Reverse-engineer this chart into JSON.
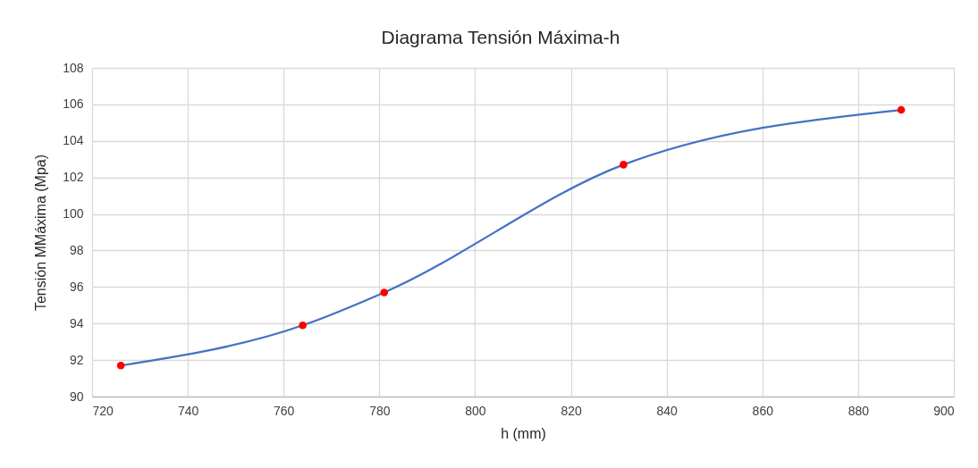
{
  "chart_data": {
    "type": "line",
    "title": "Diagrama Tensión Máxima-h",
    "xlabel": "h (mm)",
    "ylabel": "Tensión MMáxima (Mpa)",
    "x": [
      726,
      764,
      781,
      831,
      889
    ],
    "series": [
      {
        "color": "#4472c4",
        "values": [
          91.7,
          93.9,
          95.7,
          102.7,
          105.7
        ]
      },
      {
        "type": "scatter",
        "color": "#ff0000",
        "marker": "circle",
        "values": [
          91.7,
          93.9,
          95.7,
          102.7,
          105.7
        ]
      }
    ],
    "xlim": [
      720,
      900
    ],
    "xticks": [
      720,
      740,
      760,
      780,
      800,
      820,
      840,
      860,
      880,
      900
    ],
    "ylim": [
      90,
      108
    ],
    "yticks": [
      90,
      92,
      94,
      96,
      98,
      100,
      102,
      104,
      106,
      108
    ],
    "grid": true
  }
}
